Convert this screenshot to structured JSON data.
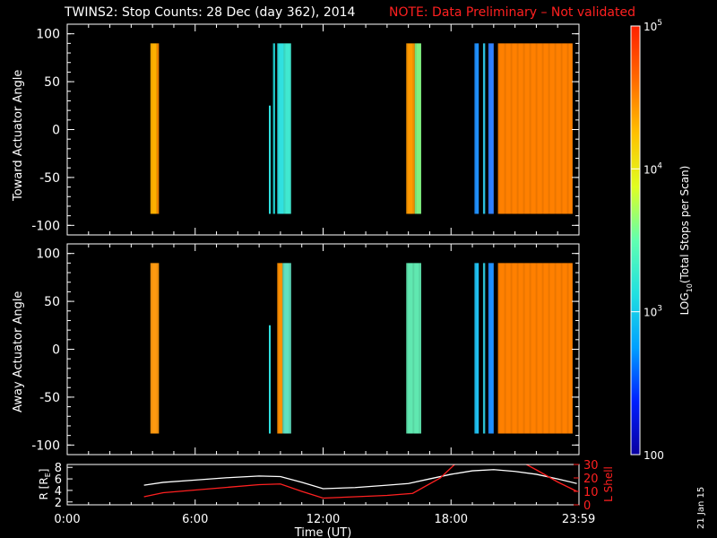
{
  "title": {
    "main": "TWINS2: Stop Counts: 28 Dec (day 362), 2014",
    "note": "NOTE: Data Preliminary – Not validated"
  },
  "stamp": "21 Jan 15",
  "colorbar": {
    "label": "LOG10(Total Stops per Scan)",
    "label_parts": [
      "LOG",
      "10",
      "(Total Stops per Scan)"
    ],
    "ticks": [
      {
        "value": 100,
        "label": "100"
      },
      {
        "value": 1000,
        "label": "10",
        "exp": "3"
      },
      {
        "value": 10000,
        "label": "10",
        "exp": "4"
      },
      {
        "value": 100000,
        "label": "10",
        "exp": "5"
      }
    ],
    "colors": [
      "#0a00a0",
      "#0020ff",
      "#00a0ff",
      "#20e0e0",
      "#60ffb0",
      "#e0ff20",
      "#ffc000",
      "#ff6a00",
      "#ff2000"
    ]
  },
  "chart_data": [
    {
      "type": "heatmap",
      "panel": "toward",
      "ylabel": "Toward Actuator Angle",
      "xlim": [
        0,
        24
      ],
      "ylim": [
        -110,
        110
      ],
      "yticks": [
        100,
        50,
        0,
        -50,
        -100
      ],
      "angle_range": [
        -88,
        90
      ],
      "blocks": [
        {
          "x0": 3.9,
          "x1": 4.2,
          "color": "#ffb000"
        },
        {
          "x0": 4.2,
          "x1": 4.3,
          "color": "#ff8a00"
        },
        {
          "x0": 9.65,
          "x1": 9.75,
          "color": "#20d0d0"
        },
        {
          "x0": 9.85,
          "x1": 10.15,
          "color": "#30e0e0"
        },
        {
          "x0": 10.15,
          "x1": 10.5,
          "color": "#40e8d0"
        },
        {
          "x0": 15.9,
          "x1": 16.3,
          "color": "#ff9a00"
        },
        {
          "x0": 16.3,
          "x1": 16.6,
          "color": "#80f080"
        },
        {
          "x0": 19.1,
          "x1": 19.3,
          "color": "#2090ff"
        },
        {
          "x0": 19.5,
          "x1": 19.6,
          "color": "#30d0f0"
        },
        {
          "x0": 19.75,
          "x1": 20.0,
          "color": "#3080ff"
        },
        {
          "x0": 20.2,
          "x1": 23.7,
          "color": "#ff8000"
        }
      ],
      "spike": {
        "x": 9.5,
        "y0": -88,
        "y1": 25
      }
    },
    {
      "type": "heatmap",
      "panel": "away",
      "ylabel": "Away Actuator Angle",
      "xlim": [
        0,
        24
      ],
      "ylim": [
        -110,
        110
      ],
      "yticks": [
        100,
        50,
        0,
        -50,
        -100
      ],
      "angle_range": [
        -88,
        90
      ],
      "blocks": [
        {
          "x0": 3.9,
          "x1": 4.3,
          "color": "#ff9a10"
        },
        {
          "x0": 9.85,
          "x1": 10.1,
          "color": "#ff9000"
        },
        {
          "x0": 10.1,
          "x1": 10.5,
          "color": "#60e0c0"
        },
        {
          "x0": 15.9,
          "x1": 16.6,
          "color": "#60e8b0"
        },
        {
          "x0": 19.1,
          "x1": 19.3,
          "color": "#20c0f0"
        },
        {
          "x0": 19.5,
          "x1": 19.6,
          "color": "#30d0e0"
        },
        {
          "x0": 19.75,
          "x1": 20.0,
          "color": "#2090ff"
        },
        {
          "x0": 20.2,
          "x1": 23.7,
          "color": "#ff8000"
        }
      ],
      "spike": {
        "x": 9.5,
        "y0": -88,
        "y1": 25
      }
    },
    {
      "type": "line",
      "panel": "orbit",
      "ylabel": "R [RE]",
      "ylabel_parts": [
        "R [R",
        "E",
        "]"
      ],
      "y2label": "L Shell",
      "xlabel": "Time (UT)",
      "xlim": [
        0,
        24
      ],
      "ylim": [
        1.5,
        8.5
      ],
      "y2lim": [
        0,
        30
      ],
      "yticks": [
        2,
        4,
        6,
        8
      ],
      "y2ticks": [
        0,
        10,
        20,
        30
      ],
      "xticks": [
        {
          "value": 0,
          "label": "0:00"
        },
        {
          "value": 6,
          "label": "6:00"
        },
        {
          "value": 12,
          "label": "12:00"
        },
        {
          "value": 18,
          "label": "18:00"
        },
        {
          "value": 23.983,
          "label": "23:59"
        }
      ],
      "series": [
        {
          "name": "R",
          "color": "#ffffff",
          "axis": "left",
          "x": [
            3.6,
            4.5,
            6,
            7.5,
            9,
            10,
            11,
            12,
            13.5,
            15,
            16,
            17,
            18,
            19,
            20,
            21,
            22,
            23,
            23.9
          ],
          "y": [
            4.9,
            5.4,
            5.8,
            6.2,
            6.5,
            6.4,
            5.4,
            4.3,
            4.5,
            4.9,
            5.2,
            6.0,
            6.8,
            7.4,
            7.6,
            7.3,
            6.8,
            6.0,
            5.2
          ]
        },
        {
          "name": "L Shell",
          "color": "#ff2020",
          "axis": "right",
          "x": [
            3.6,
            4.5,
            6,
            7.5,
            9,
            10,
            11,
            12,
            13.5,
            15,
            16.2,
            17.5,
            18.3
          ],
          "y": [
            6,
            9,
            11,
            13,
            15,
            15.5,
            10,
            5,
            6,
            7,
            8.5,
            20,
            32
          ]
        },
        {
          "name": "L Shell",
          "color": "#ff2020",
          "axis": "right",
          "x": [
            21.3,
            22,
            23,
            23.9
          ],
          "y": [
            32,
            26,
            17,
            10
          ]
        }
      ]
    }
  ]
}
